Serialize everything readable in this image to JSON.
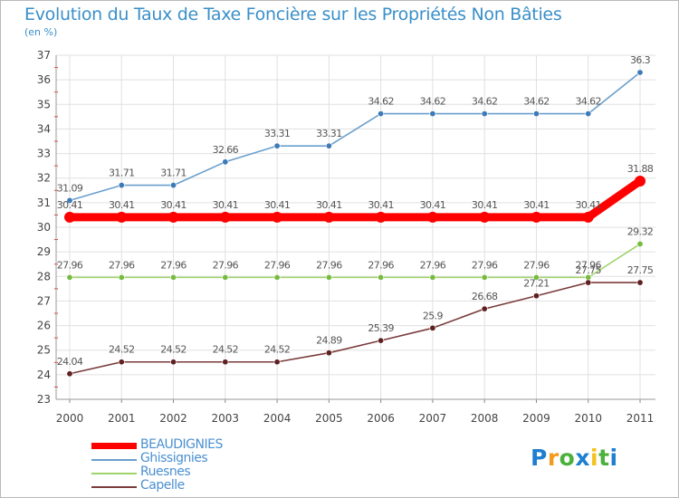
{
  "chart_data": {
    "type": "line",
    "title": "Evolution du Taux de Taxe Foncière sur les Propriétés Non Bâties",
    "subtitle": "(en %)",
    "xlabel": "",
    "ylabel": "",
    "x": [
      "2000",
      "2001",
      "2002",
      "2003",
      "2004",
      "2005",
      "2006",
      "2007",
      "2008",
      "2009",
      "2010",
      "2011"
    ],
    "ylim": [
      23,
      37
    ],
    "yticks": [
      "23",
      "24",
      "25",
      "26",
      "27",
      "28",
      "29",
      "30",
      "31",
      "32",
      "33",
      "34",
      "35",
      "36",
      "37"
    ],
    "grid": true,
    "legend_position": "bottom-left",
    "series": [
      {
        "name": "Ghissignies",
        "color": "#6a9fcc",
        "marker": "#3d7ab8",
        "values": [
          31.09,
          31.71,
          31.71,
          32.66,
          33.31,
          33.31,
          34.62,
          34.62,
          34.62,
          34.62,
          34.62,
          36.3
        ],
        "labels": [
          "31.09",
          "31.71",
          "31.71",
          "32.66",
          "33.31",
          "33.31",
          "34.62",
          "34.62",
          "34.62",
          "34.62",
          "34.62",
          "36.3"
        ]
      },
      {
        "name": "Ruesnes",
        "color": "#9ed36a",
        "marker": "#76bb3f",
        "values": [
          27.96,
          27.96,
          27.96,
          27.96,
          27.96,
          27.96,
          27.96,
          27.96,
          27.96,
          27.96,
          27.96,
          29.32
        ],
        "labels": [
          "27.96",
          "27.96",
          "27.96",
          "27.96",
          "27.96",
          "27.96",
          "27.96",
          "27.96",
          "27.96",
          "27.96",
          "27.96",
          "29.32"
        ]
      },
      {
        "name": "Capelle",
        "color": "#7a3b3b",
        "marker": "#5e2020",
        "values": [
          24.04,
          24.52,
          24.52,
          24.52,
          24.52,
          24.89,
          25.39,
          25.9,
          26.68,
          27.21,
          27.75,
          27.75
        ],
        "labels": [
          "24.04",
          "24.52",
          "24.52",
          "24.52",
          "24.52",
          "24.89",
          "25.39",
          "25.9",
          "26.68",
          "27.21",
          "27.75",
          "27.75"
        ]
      },
      {
        "name": "BEAUDIGNIES",
        "color": "#ff0000",
        "marker": "#ff0000",
        "values": [
          30.41,
          30.41,
          30.41,
          30.41,
          30.41,
          30.41,
          30.41,
          30.41,
          30.41,
          30.41,
          30.41,
          31.88
        ],
        "labels": [
          "30.41",
          "30.41",
          "30.41",
          "30.41",
          "30.41",
          "30.41",
          "30.41",
          "30.41",
          "30.41",
          "30.41",
          "30.41",
          "31.88"
        ]
      }
    ]
  },
  "legend": [
    {
      "name": "BEAUDIGNIES",
      "color": "#ff0000",
      "text_color": "#4a90d0"
    },
    {
      "name": "Ghissignies",
      "color": "#6a9fcc",
      "text_color": "#4a90d0"
    },
    {
      "name": "Ruesnes",
      "color": "#9ed36a",
      "text_color": "#4a90d0"
    },
    {
      "name": "Capelle",
      "color": "#7a3b3b",
      "text_color": "#4a90d0"
    }
  ],
  "logo": {
    "letters": [
      "P",
      "r",
      "o",
      "x",
      "i",
      "t",
      "i"
    ],
    "colors": [
      "#1e7fd0",
      "#f39b1f",
      "#4cb03c",
      "#1e7fd0",
      "#f3c21f",
      "#4cb03c",
      "#1e7fd0"
    ]
  }
}
